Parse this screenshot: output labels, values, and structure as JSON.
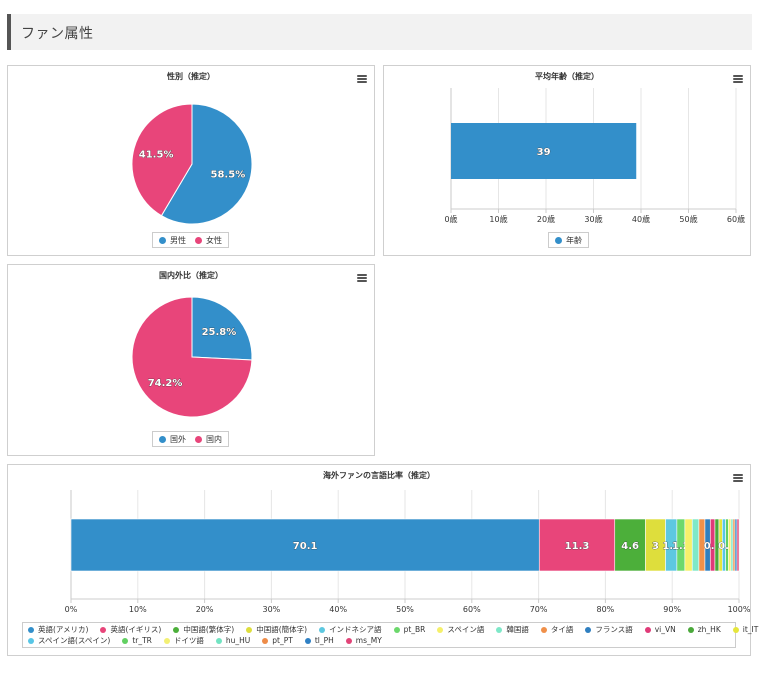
{
  "header": {
    "title": "ファン属性"
  },
  "colors": {
    "blue": "#338fca",
    "pink": "#e8457a"
  },
  "chart_data": [
    {
      "type": "pie",
      "title": "性別（推定）",
      "slices": [
        {
          "name": "男性",
          "value": 58.5,
          "label": "58.5%",
          "color": "#338fca"
        },
        {
          "name": "女性",
          "value": 41.5,
          "label": "41.5%",
          "color": "#e8457a"
        }
      ],
      "legend": "bottom-center"
    },
    {
      "type": "bar",
      "orientation": "horizontal",
      "title": "平均年齢（推定）",
      "categories": [
        ""
      ],
      "series": [
        {
          "name": "年齢",
          "values": [
            39
          ],
          "color": "#338fca"
        }
      ],
      "xlim": [
        0,
        60
      ],
      "ticks": [
        {
          "value": 0,
          "label": "0歳"
        },
        {
          "value": 10,
          "label": "10歳"
        },
        {
          "value": 20,
          "label": "20歳"
        },
        {
          "value": 30,
          "label": "30歳"
        },
        {
          "value": 40,
          "label": "40歳"
        },
        {
          "value": 50,
          "label": "50歳"
        },
        {
          "value": 60,
          "label": "60歳"
        }
      ],
      "grid": true,
      "legend": "bottom-center"
    },
    {
      "type": "pie",
      "title": "国内外比（推定）",
      "slices": [
        {
          "name": "国外",
          "value": 25.8,
          "label": "25.8%",
          "color": "#338fca"
        },
        {
          "name": "国内",
          "value": 74.2,
          "label": "74.2%",
          "color": "#e8457a"
        }
      ],
      "legend": "bottom-center"
    },
    {
      "type": "bar",
      "orientation": "horizontal",
      "stacked": true,
      "title": "海外ファンの言語比率（推定）",
      "xlim": [
        0,
        100
      ],
      "ticks": [
        {
          "value": 0,
          "label": "0%"
        },
        {
          "value": 10,
          "label": "10%"
        },
        {
          "value": 20,
          "label": "20%"
        },
        {
          "value": 30,
          "label": "30%"
        },
        {
          "value": 40,
          "label": "40%"
        },
        {
          "value": 50,
          "label": "50%"
        },
        {
          "value": 60,
          "label": "60%"
        },
        {
          "value": 70,
          "label": "70%"
        },
        {
          "value": 80,
          "label": "80%"
        },
        {
          "value": 90,
          "label": "90%"
        },
        {
          "value": 100,
          "label": "100%"
        }
      ],
      "grid": true,
      "legend": "bottom",
      "series": [
        {
          "name": "英語(アメリカ)",
          "value": 70.1,
          "label": "70.1",
          "color": "#338fca"
        },
        {
          "name": "英語(イギリス)",
          "value": 11.3,
          "label": "11.3",
          "color": "#e8457a"
        },
        {
          "name": "中国語(繁体字)",
          "value": 4.6,
          "label": "4.6",
          "color": "#4caf3a"
        },
        {
          "name": "中国語(簡体字)",
          "value": 3,
          "label": "3",
          "color": "#dede3c"
        },
        {
          "name": "インドネシア語",
          "value": 1.7,
          "label": "1.7",
          "color": "#5dc8e0"
        },
        {
          "name": "pt_BR",
          "value": 1.2,
          "label": "1.2",
          "color": "#6cd86c"
        },
        {
          "name": "スペイン語",
          "value": 1.1,
          "label": "",
          "color": "#f5f06a"
        },
        {
          "name": "韓国語",
          "value": 1,
          "label": "",
          "color": "#7ee8c8"
        },
        {
          "name": "タイ語",
          "value": 0.9,
          "label": "",
          "color": "#f0904a"
        },
        {
          "name": "フランス語",
          "value": 0.8,
          "label": "",
          "color": "#2f7fc0"
        },
        {
          "name": "vi_VN",
          "value": 0.7,
          "label": "0.7",
          "color": "#e03a78"
        },
        {
          "name": "zh_HK",
          "value": 0.6,
          "label": "",
          "color": "#4aa83a"
        },
        {
          "name": "it_IT",
          "value": 0.5,
          "label": "",
          "color": "#e6e63c"
        },
        {
          "name": "スペイン語(スペイン)",
          "value": 0.5,
          "label": "",
          "color": "#58c6e6"
        },
        {
          "name": "tr_TR",
          "value": 0.4,
          "label": "0.4",
          "color": "#62d062"
        },
        {
          "name": "ドイツ語",
          "value": 0.4,
          "label": "",
          "color": "#f3f074"
        },
        {
          "name": "hu_HU",
          "value": 0.3,
          "label": "",
          "color": "#72e4c2"
        },
        {
          "name": "pt_PT",
          "value": 0.3,
          "label": "",
          "color": "#ee8c48"
        },
        {
          "name": "tl_PH",
          "value": 0.3,
          "label": "",
          "color": "#2f80c4"
        },
        {
          "name": "ms_MY",
          "value": 0.3,
          "label": "",
          "color": "#e24478"
        }
      ]
    }
  ]
}
